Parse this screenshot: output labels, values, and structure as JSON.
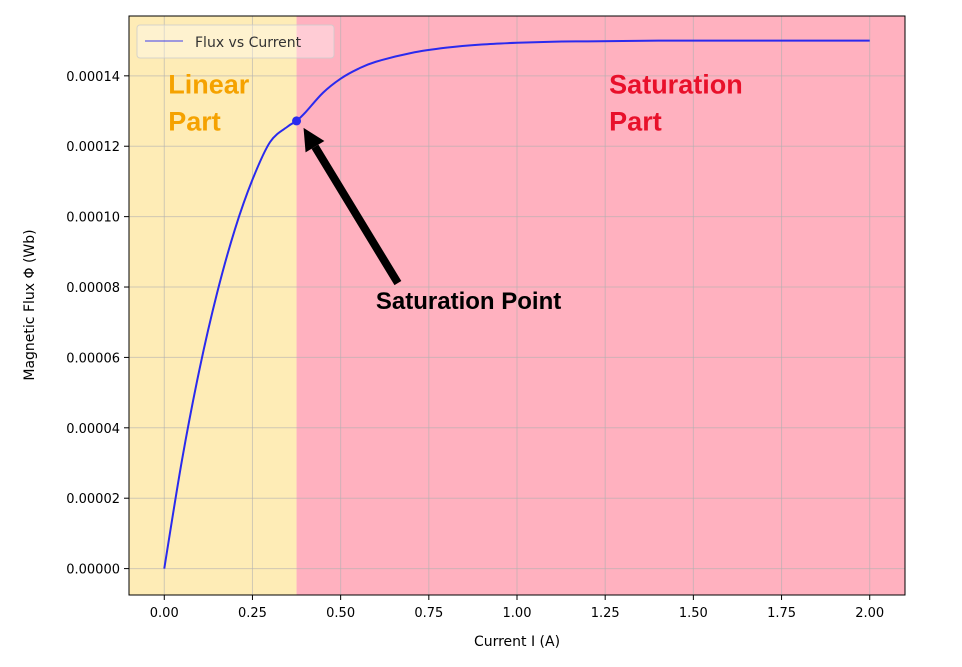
{
  "chart_data": {
    "type": "line",
    "title": "",
    "xlabel": "Current I (A)",
    "ylabel": "Magnetic Flux Φ (Wb)",
    "xlim": [
      -0.1,
      2.1
    ],
    "ylim": [
      -7.5e-06,
      0.000157
    ],
    "grid": true,
    "legend": {
      "placement": "top-left",
      "entries": [
        "Flux vs Current"
      ]
    },
    "x_ticks": [
      0.0,
      0.25,
      0.5,
      0.75,
      1.0,
      1.25,
      1.5,
      1.75,
      2.0
    ],
    "x_tick_labels": [
      "0.00",
      "0.25",
      "0.50",
      "0.75",
      "1.00",
      "1.25",
      "1.50",
      "1.75",
      "2.00"
    ],
    "y_ticks": [
      0,
      2e-05,
      4e-05,
      6e-05,
      8e-05,
      0.0001,
      0.00012,
      0.00014
    ],
    "y_tick_labels": [
      "0.00000",
      "0.00002",
      "0.00004",
      "0.00006",
      "0.00008",
      "0.00010",
      "0.00012",
      "0.00014"
    ],
    "series": [
      {
        "name": "Flux vs Current",
        "color": "#2a2aee",
        "x": [
          0.0,
          0.05,
          0.1,
          0.15,
          0.2,
          0.25,
          0.3,
          0.35,
          0.375,
          0.4,
          0.45,
          0.5,
          0.55,
          0.6,
          0.7,
          0.8,
          0.9,
          1.0,
          1.1,
          1.2,
          1.3,
          1.4,
          1.5,
          1.6,
          1.7,
          1.8,
          1.9,
          2.0
        ],
        "y": [
          0.0,
          3.07e-05,
          5.67e-05,
          7.84e-05,
          9.63e-05,
          0.0001105,
          0.0001212,
          0.0001256,
          0.0001272,
          0.0001296,
          0.0001352,
          0.0001392,
          0.000142,
          0.000144,
          0.0001465,
          0.000148,
          0.0001489,
          0.0001494,
          0.0001497,
          0.0001498,
          0.0001499,
          0.00015,
          0.00015,
          0.00015,
          0.00015,
          0.00015,
          0.00015,
          0.00015
        ]
      }
    ],
    "saturation_point": {
      "x": 0.375,
      "y": 0.0001272
    },
    "regions": [
      {
        "label_lines": [
          "Linear",
          "Part"
        ],
        "x_from": -0.1,
        "x_to": 0.375,
        "fill": "#feecb6",
        "label_color": "#f5a200",
        "label_x": 0.0,
        "label_y": 0.000135
      },
      {
        "label_lines": [
          "Saturation",
          "Part"
        ],
        "x_from": 0.375,
        "x_to": 2.1,
        "fill": "#ffb1bf",
        "label_color": "#e8102a",
        "label_x": 1.25,
        "label_y": 0.000135
      }
    ],
    "annotation": {
      "text": "Saturation Point",
      "text_x": 0.6,
      "text_y": 7.6e-05
    }
  }
}
